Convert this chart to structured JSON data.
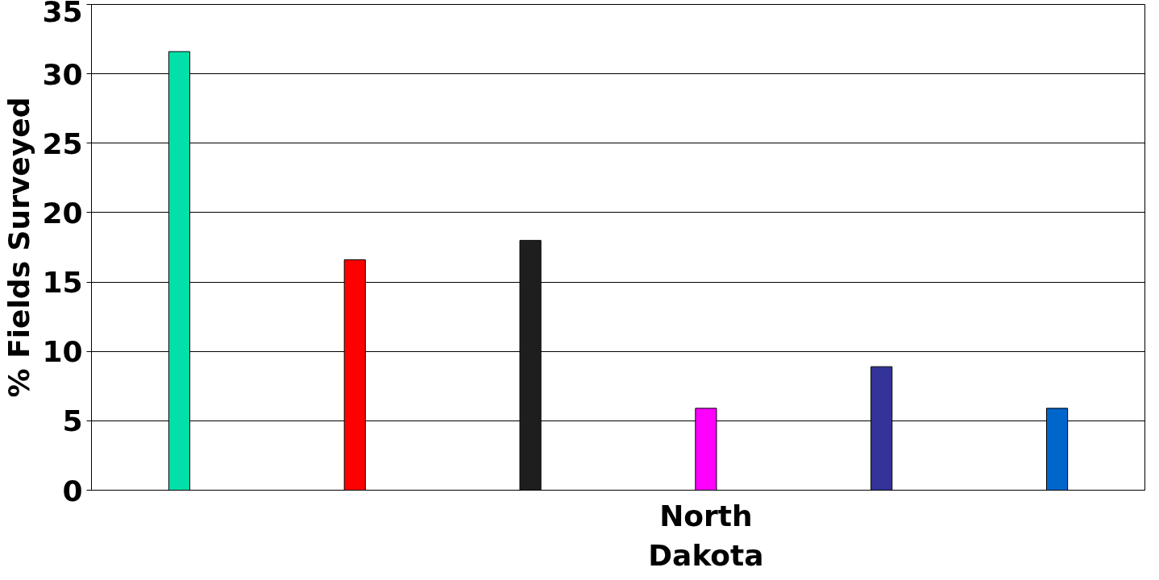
{
  "chart_data": {
    "type": "bar",
    "ylabel": "% Fields Surveyed",
    "categories": [
      null,
      null,
      null,
      "North Dakota",
      null,
      null
    ],
    "values": [
      31.6,
      16.6,
      18.0,
      5.9,
      8.9,
      5.9
    ],
    "colors": [
      "#00e0a8",
      "#ff0000",
      "#1e1e1e",
      "#ff00ff",
      "#333399",
      "#0066cc"
    ],
    "ylim": [
      0,
      35
    ],
    "yticks": [
      0,
      5,
      10,
      15,
      20,
      25,
      30,
      35
    ],
    "grid": "y"
  }
}
